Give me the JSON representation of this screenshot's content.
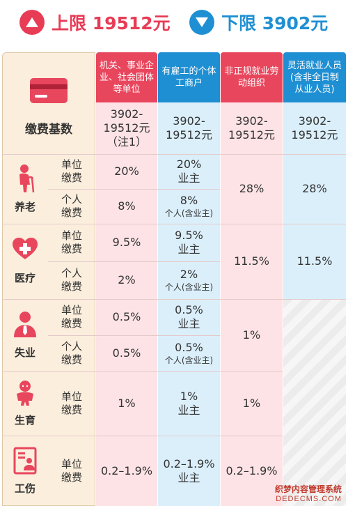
{
  "header": {
    "upper_label": "上限 19512元",
    "lower_label": "下限 3902元"
  },
  "columns": [
    "机关、事业企业、社会团体等单位",
    "有雇工的个体工商户",
    "非正规就业劳动组织",
    "灵活就业人员(含非全日制从业人员)"
  ],
  "base": {
    "label": "缴费基数",
    "values": [
      "3902-19512元（注1）",
      "3902-19512元",
      "3902-19512元",
      "3902-19512元"
    ]
  },
  "sections": {
    "pension": {
      "label": "养老",
      "unit_label": "单位缴费",
      "person_label": "个人缴费",
      "c1_unit": "20%",
      "c1_person": "8%",
      "c2_unit": "20%",
      "c2_unit_note": "业主",
      "c2_person": "8%",
      "c2_person_note": "个人(含业主)",
      "c3": "28%",
      "c4": "28%"
    },
    "medical": {
      "label": "医疗",
      "unit_label": "单位缴费",
      "person_label": "个人缴费",
      "c1_unit": "9.5%",
      "c1_person": "2%",
      "c2_unit": "9.5%",
      "c2_unit_note": "业主",
      "c2_person": "2%",
      "c2_person_note": "个人(含业主)",
      "c3": "11.5%",
      "c4": "11.5%"
    },
    "unemployment": {
      "label": "失业",
      "unit_label": "单位缴费",
      "person_label": "个人缴费",
      "c1_unit": "0.5%",
      "c1_person": "0.5%",
      "c2_unit": "0.5%",
      "c2_unit_note": "业主",
      "c2_person": "0.5%",
      "c2_person_note": "个人(含业主)",
      "c3": "1%"
    },
    "maternity": {
      "label": "生育",
      "unit_label": "单位缴费",
      "c1_unit": "1%",
      "c2_unit": "1%",
      "c2_unit_note": "业主",
      "c3": "1%"
    },
    "injury": {
      "label": "工伤",
      "unit_label": "单位缴费",
      "c1_unit": "0.2–1.9%",
      "c2_unit": "0.2–1.9%",
      "c2_unit_note": "业主",
      "c3": "0.2–1.9%"
    }
  },
  "watermark": {
    "line1": "织梦内容管理系统",
    "line2": "DEDECMS.COM"
  },
  "colors": {
    "red": "#e83b55",
    "blue": "#1f8fd3",
    "pink_cell": "#fde3e6",
    "blue_cell": "#dbeffb",
    "rail": "#fbeedd",
    "icon_red": "#e8465d"
  }
}
